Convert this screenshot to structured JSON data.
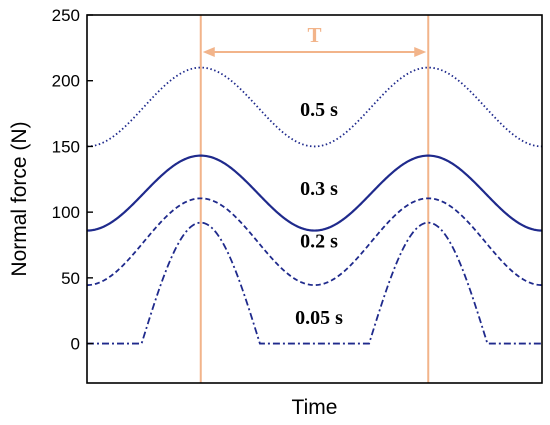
{
  "chart_data": {
    "type": "line",
    "title": "",
    "xlabel": "Time",
    "ylabel": "Normal force (N)",
    "ylim": [
      -30,
      250
    ],
    "yticks": [
      0,
      50,
      100,
      150,
      200,
      250
    ],
    "xlim": [
      -0.5,
      1.5
    ],
    "x_tick_labels": false,
    "grid": false,
    "legend": "none",
    "colors": {
      "series": "#1f2a8c",
      "period_marker": "#f2b48a"
    },
    "period_marker": {
      "label": "T",
      "x_start": 0,
      "x_end": 1
    },
    "series": [
      {
        "label": "0.5 s",
        "line_style": "dotted",
        "mean": 180,
        "amplitude": 30,
        "baseline": 150
      },
      {
        "label": "0.3 s",
        "line_style": "solid",
        "mean": 114.5,
        "amplitude": 28.5,
        "baseline": 86
      },
      {
        "label": "0.2 s",
        "line_style": "dashed",
        "mean": 77.5,
        "amplitude": 33,
        "baseline": 44.5
      },
      {
        "label": "0.05 s",
        "line_style": "dash-dot",
        "peak": 92,
        "baseline": 0,
        "rise_start": 0.3,
        "flat_end": 0.26
      }
    ]
  }
}
